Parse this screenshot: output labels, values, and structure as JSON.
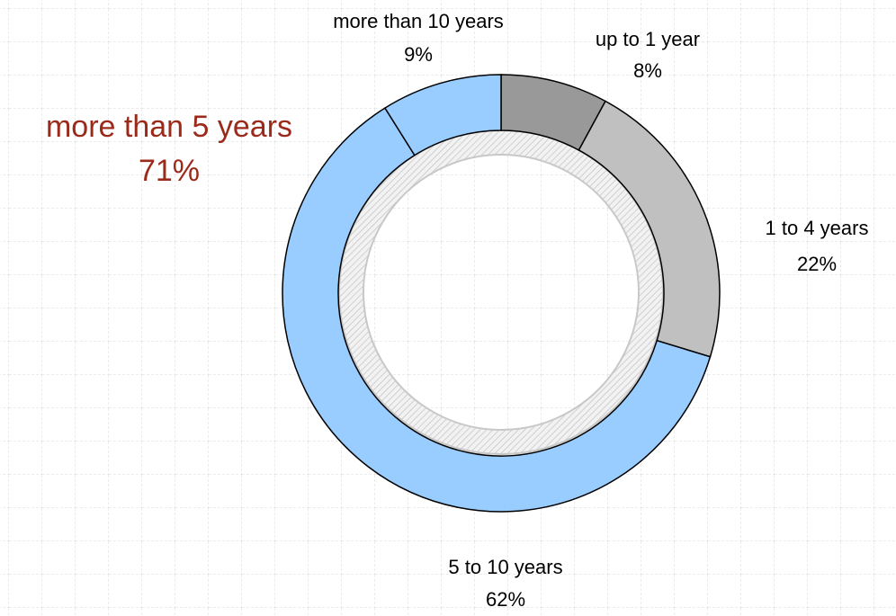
{
  "chart_data": {
    "type": "donut",
    "categories": [
      "up to 1 year",
      "1 to 4 years",
      "5 to 10 years",
      "more than 10 years"
    ],
    "values": [
      8,
      22,
      62,
      9
    ],
    "value_labels": [
      "8%",
      "22%",
      "62%",
      "9%"
    ],
    "colors": [
      "#999999",
      "#c0c0c0",
      "#99ccff",
      "#99ccff"
    ],
    "annotation": {
      "text": "more than 5 years",
      "value": "71%"
    }
  }
}
